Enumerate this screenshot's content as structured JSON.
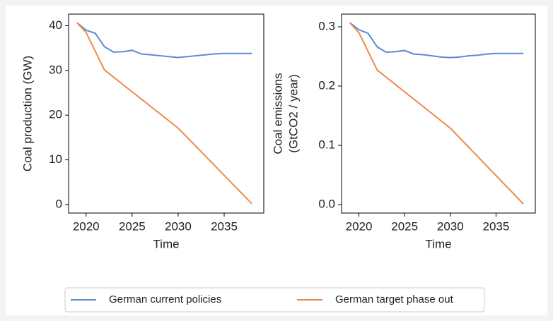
{
  "chart_data": [
    {
      "type": "line",
      "xlabel": "Time",
      "ylabel": [
        "Coal production (GW)"
      ],
      "xlim": [
        2018.1,
        2039.3
      ],
      "xticks": [
        2020,
        2025,
        2030,
        2035
      ],
      "ylim": [
        -1.9,
        42.6
      ],
      "yticks": [
        0,
        10,
        20,
        30,
        40
      ],
      "series": [
        {
          "name": "German current policies",
          "color": "#5b8bd6",
          "x": [
            2019,
            2020,
            2021,
            2022,
            2023,
            2024,
            2025,
            2026,
            2027,
            2028,
            2029,
            2030,
            2031,
            2032,
            2033,
            2034,
            2035,
            2036,
            2037,
            2038
          ],
          "values": [
            40.7,
            39,
            38.3,
            35.3,
            34.1,
            34.2,
            34.5,
            33.7,
            33.5,
            33.3,
            33.1,
            32.9,
            33.1,
            33.3,
            33.5,
            33.7,
            33.8,
            33.8,
            33.8,
            33.8
          ]
        },
        {
          "name": "German target phase out",
          "color": "#ee8a4f",
          "x": [
            2019,
            2020,
            2022,
            2030,
            2038
          ],
          "values": [
            40.7,
            38.5,
            30.1,
            17.1,
            0.2
          ]
        }
      ]
    },
    {
      "type": "line",
      "xlabel": "Time",
      "ylabel": [
        "Coal emissions",
        "(GtCO2 / year)"
      ],
      "xlim": [
        2018.1,
        2039.3
      ],
      "xticks": [
        2020,
        2025,
        2030,
        2035
      ],
      "ylim": [
        -0.0143,
        0.3214
      ],
      "yticks": [
        {
          "value": 0,
          "label": "0.0"
        },
        0.1,
        0.2,
        0.3
      ],
      "series": [
        {
          "color": "#5b8bd6",
          "x": [
            2019,
            2020,
            2021,
            2022,
            2023,
            2024,
            2025,
            2026,
            2027,
            2028,
            2029,
            2030,
            2031,
            2032,
            2033,
            2034,
            2035,
            2036,
            2037,
            2038
          ],
          "values": [
            0.307,
            0.295,
            0.289,
            0.266,
            0.257,
            0.258,
            0.26,
            0.254,
            0.253,
            0.251,
            0.249,
            0.248,
            0.249,
            0.251,
            0.252,
            0.254,
            0.255,
            0.255,
            0.255,
            0.255
          ]
        },
        {
          "color": "#ee8a4f",
          "x": [
            2019,
            2020,
            2022,
            2030,
            2038
          ],
          "values": [
            0.307,
            0.29,
            0.227,
            0.129,
            0.001
          ]
        }
      ]
    }
  ]
}
